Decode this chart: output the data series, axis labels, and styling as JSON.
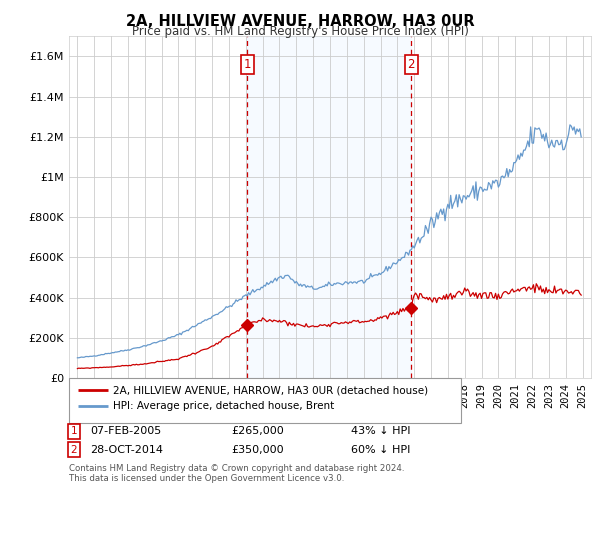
{
  "title": "2A, HILLVIEW AVENUE, HARROW, HA3 0UR",
  "subtitle": "Price paid vs. HM Land Registry's House Price Index (HPI)",
  "line1_label": "2A, HILLVIEW AVENUE, HARROW, HA3 0UR (detached house)",
  "line2_label": "HPI: Average price, detached house, Brent",
  "line1_color": "#cc0000",
  "line2_color": "#6699cc",
  "shade_color": "#ddeeff",
  "sale1_date_label": "07-FEB-2005",
  "sale1_price_label": "£265,000",
  "sale1_pct_label": "43% ↓ HPI",
  "sale2_date_label": "28-OCT-2014",
  "sale2_price_label": "£350,000",
  "sale2_pct_label": "60% ↓ HPI",
  "sale1_x": 2005.09,
  "sale1_y": 265000,
  "sale2_x": 2014.83,
  "sale2_y": 350000,
  "ylim": [
    0,
    1700000
  ],
  "xlim": [
    1994.5,
    2025.5
  ],
  "footnote": "Contains HM Land Registry data © Crown copyright and database right 2024.\nThis data is licensed under the Open Government Licence v3.0.",
  "background_color": "#ffffff",
  "plot_bg_color": "#ffffff",
  "grid_color": "#cccccc"
}
